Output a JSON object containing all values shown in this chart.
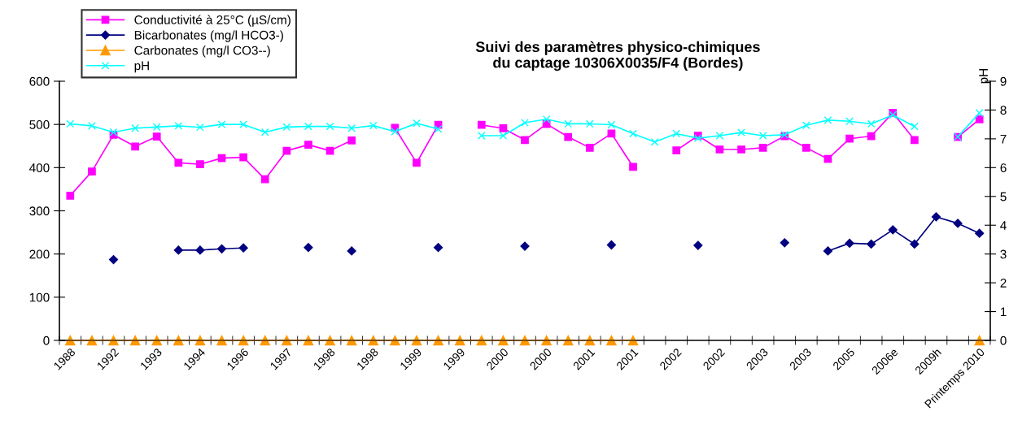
{
  "chart_data": {
    "type": "line",
    "title": "Suivi des paramètres physico-chimiques\ndu captage 10306X0035/F4 (Bordes)",
    "y2label": "pH",
    "categories": [
      "1988",
      null,
      "1992",
      null,
      "1993",
      null,
      "1994",
      null,
      "1996",
      null,
      "1997",
      null,
      "1998",
      null,
      "1998",
      null,
      "1999",
      null,
      "1999",
      null,
      "2000",
      null,
      "2000",
      null,
      "2001",
      null,
      "2001",
      null,
      "2002",
      null,
      "2002",
      null,
      "2003",
      null,
      "2003",
      null,
      "2005",
      null,
      "2006e",
      null,
      "2009h",
      null,
      "Printemps 2010"
    ],
    "series": [
      {
        "name": "Conductivité à 25°C (µS/cm)",
        "color": "#ff00ff",
        "marker": "square",
        "values": [
          335,
          391,
          476,
          449,
          472,
          411,
          408,
          422,
          424,
          373,
          439,
          453,
          439,
          463,
          null,
          492,
          411,
          499,
          null,
          499,
          491,
          464,
          501,
          471,
          446,
          479,
          402,
          null,
          440,
          474,
          442,
          442,
          446,
          473,
          446,
          420,
          467,
          473,
          527,
          464,
          null,
          471,
          512
        ]
      },
      {
        "name": "Bicarbonates (mg/l HCO3-)",
        "color": "#000080",
        "marker": "diamond",
        "values": [
          null,
          null,
          187,
          null,
          null,
          209,
          209,
          212,
          214,
          null,
          null,
          215,
          null,
          207,
          null,
          null,
          null,
          215,
          null,
          null,
          null,
          218,
          null,
          null,
          null,
          221,
          null,
          null,
          null,
          220,
          null,
          null,
          null,
          226,
          null,
          207,
          225,
          223,
          256,
          223,
          286,
          271,
          248
        ]
      },
      {
        "name": "Carbonates (mg/l CO3--)",
        "color": "#ff9900",
        "marker": "triangle",
        "values": [
          0,
          0,
          0,
          0,
          0,
          0,
          0,
          0,
          0,
          0,
          0,
          0,
          0,
          0,
          0,
          0,
          0,
          0,
          0,
          0,
          0,
          0,
          0,
          0,
          0,
          0,
          0,
          null,
          null,
          null,
          null,
          null,
          null,
          null,
          null,
          null,
          null,
          null,
          null,
          null,
          null,
          null,
          0
        ]
      },
      {
        "name": "pH",
        "color": "#00ffff",
        "marker": "cross",
        "axis": "y2",
        "values": [
          7.52,
          7.45,
          7.23,
          7.37,
          7.41,
          7.45,
          7.4,
          7.5,
          7.5,
          7.23,
          7.41,
          7.43,
          7.43,
          7.37,
          7.46,
          7.25,
          7.54,
          7.34,
          null,
          7.11,
          7.11,
          7.56,
          7.68,
          7.52,
          7.52,
          7.49,
          7.18,
          6.89,
          7.18,
          7.02,
          7.11,
          7.22,
          7.11,
          7.14,
          7.47,
          7.65,
          7.61,
          7.52,
          7.83,
          7.43,
          null,
          7.07,
          7.9
        ]
      }
    ],
    "ylim": [
      0,
      600
    ],
    "yticks": [
      0,
      100,
      200,
      300,
      400,
      500,
      600
    ],
    "y2lim": [
      0,
      9
    ],
    "y2ticks": [
      0,
      1,
      2,
      3,
      4,
      5,
      6,
      7,
      8,
      9
    ],
    "legend": "top left",
    "grid": false
  }
}
